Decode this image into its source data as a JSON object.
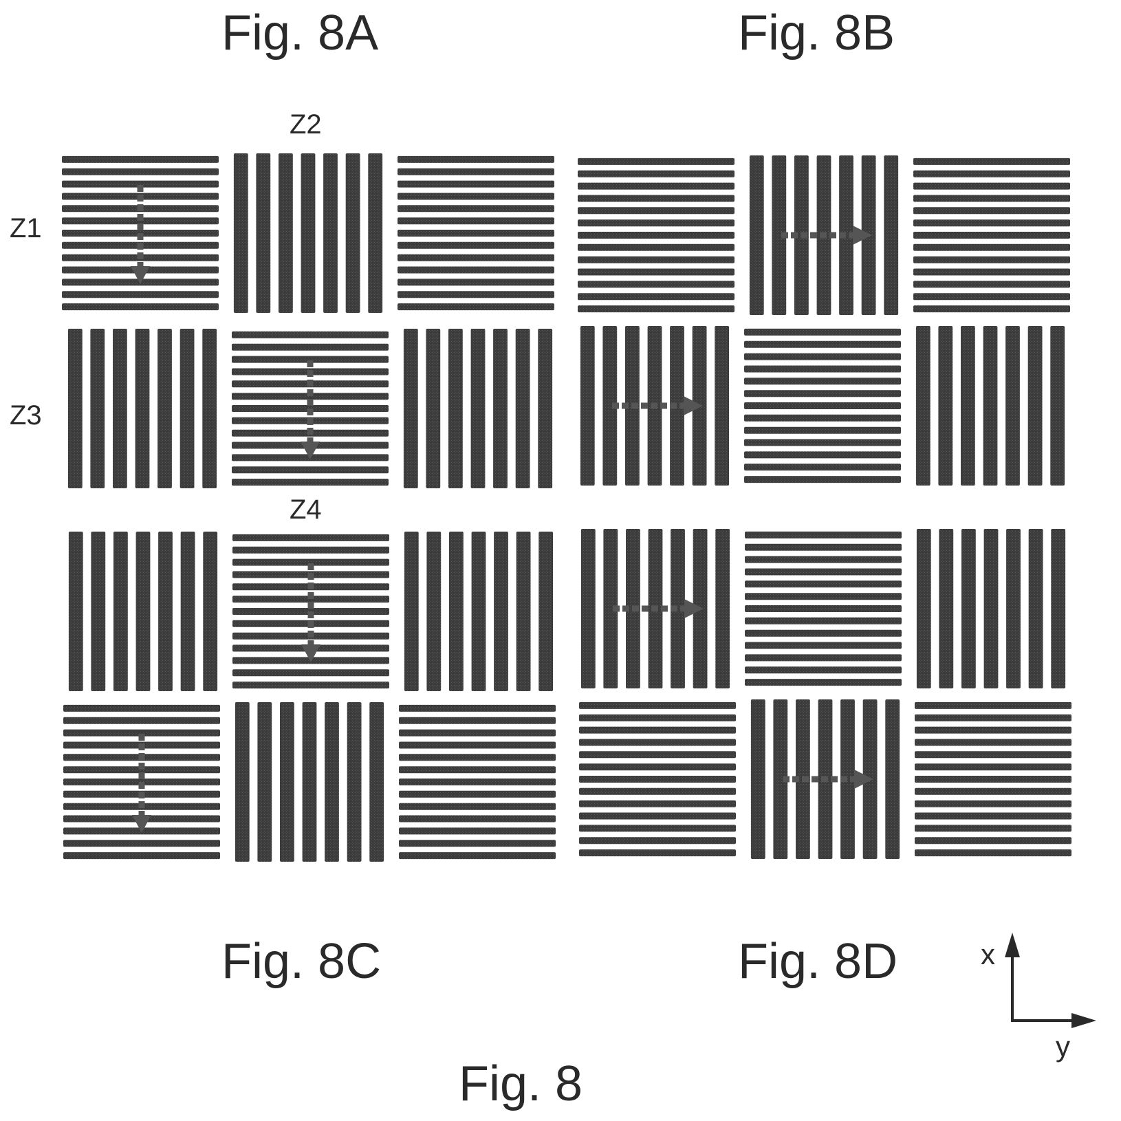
{
  "labels": {
    "fig_8a": "Fig. 8A",
    "fig_8b": "Fig. 8B",
    "fig_8c": "Fig. 8C",
    "fig_8d": "Fig. 8D",
    "figure": "Fig. 8",
    "z1": "Z1",
    "z2": "Z2",
    "z3": "Z3",
    "z4": "Z4",
    "axis_x": "x",
    "axis_y": "y"
  },
  "colors": {
    "stripe": "#3c3c3c",
    "arrow": "#555555",
    "text": "#2a2a2a",
    "background": "#ffffff"
  },
  "panels": [
    {
      "id": "8A",
      "grid": [
        [
          "horizontal",
          "vertical",
          "horizontal"
        ],
        [
          "vertical",
          "horizontal",
          "vertical"
        ]
      ],
      "arrow_direction": "down",
      "arrows_in_tiles": [
        [
          0,
          0
        ],
        [
          1,
          1
        ]
      ]
    },
    {
      "id": "8B",
      "grid": [
        [
          "horizontal",
          "vertical",
          "horizontal"
        ],
        [
          "vertical",
          "horizontal",
          "vertical"
        ]
      ],
      "arrow_direction": "right",
      "arrows_in_tiles": [
        [
          0,
          1
        ],
        [
          1,
          0
        ]
      ]
    },
    {
      "id": "8C",
      "grid": [
        [
          "vertical",
          "horizontal",
          "vertical"
        ],
        [
          "horizontal",
          "vertical",
          "horizontal"
        ]
      ],
      "arrow_direction": "down",
      "arrows_in_tiles": [
        [
          0,
          1
        ],
        [
          1,
          0
        ]
      ]
    },
    {
      "id": "8D",
      "grid": [
        [
          "vertical",
          "horizontal",
          "vertical"
        ],
        [
          "horizontal",
          "vertical",
          "horizontal"
        ]
      ],
      "arrow_direction": "right",
      "arrows_in_tiles": [
        [
          0,
          0
        ],
        [
          1,
          1
        ]
      ]
    }
  ]
}
